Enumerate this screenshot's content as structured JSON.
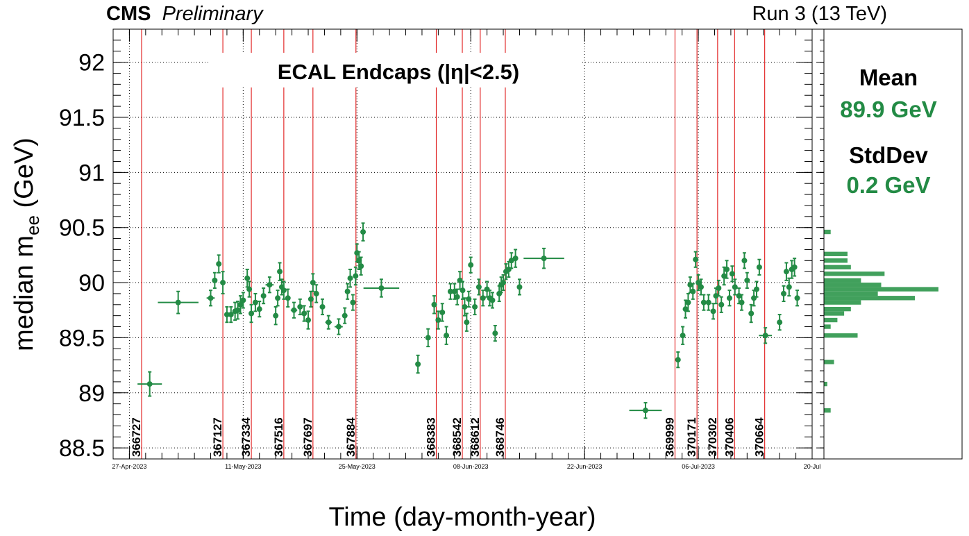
{
  "header": {
    "experiment": "CMS",
    "status": "Preliminary",
    "run_info": "Run 3 (13 TeV)"
  },
  "stats": {
    "mean_label": "Mean",
    "mean_value": "89.9 GeV",
    "stddev_label": "StdDev",
    "stddev_value": "0.2 GeV"
  },
  "colors": {
    "points": "#238b45",
    "run_lines": "#dd0000",
    "histogram": "#41a05c"
  },
  "chart_data": {
    "type": "scatter",
    "title": "ECAL Endcaps (|η|<2.5)",
    "xlabel": "Time (day-month-year)",
    "ylabel": "median m",
    "ylabel_sub": "ee",
    "ylabel_unit": " (GeV)",
    "ylim": [
      88.4,
      92.3
    ],
    "xlim": [
      "2023-04-25",
      "2023-07-20"
    ],
    "grid": true,
    "y_ticks": [
      {
        "value": 88.5,
        "label": "88.5"
      },
      {
        "value": 89,
        "label": "89"
      },
      {
        "value": 89.5,
        "label": "89.5"
      },
      {
        "value": 90,
        "label": "90"
      },
      {
        "value": 90.5,
        "label": "90.5"
      },
      {
        "value": 91,
        "label": "91"
      },
      {
        "value": 91.5,
        "label": "91.5"
      },
      {
        "value": 92,
        "label": "92"
      }
    ],
    "x_ticks": [
      {
        "date": "2023-04-27",
        "label": "27-Apr-2023"
      },
      {
        "date": "2023-05-11",
        "label": "11-May-2023"
      },
      {
        "date": "2023-05-25",
        "label": "25-May-2023"
      },
      {
        "date": "2023-06-08",
        "label": "08-Jun-2023"
      },
      {
        "date": "2023-06-22",
        "label": "22-Jun-2023"
      },
      {
        "date": "2023-07-06",
        "label": "06-Jul-2023"
      },
      {
        "date": "2023-07-20",
        "label": "20-Jul"
      }
    ],
    "runs": [
      {
        "run": "366727",
        "date": "2023-04-28 12:00"
      },
      {
        "run": "367127",
        "date": "2023-05-08 12:00"
      },
      {
        "run": "367334",
        "date": "2023-05-12 00:00"
      },
      {
        "run": "367516",
        "date": "2023-05-16 00:00"
      },
      {
        "run": "367697",
        "date": "2023-05-19 14:00"
      },
      {
        "run": "367884",
        "date": "2023-05-24 21:00"
      },
      {
        "run": "368383",
        "date": "2023-06-03 18:00"
      },
      {
        "run": "368542",
        "date": "2023-06-06 23:00"
      },
      {
        "run": "368612",
        "date": "2023-06-09 04:00"
      },
      {
        "run": "368746",
        "date": "2023-06-12 06:00"
      },
      {
        "run": "369999",
        "date": "2023-07-03 03:00"
      },
      {
        "run": "370171",
        "date": "2023-07-05 20:00"
      },
      {
        "run": "370302",
        "date": "2023-07-08 09:00"
      },
      {
        "run": "370406",
        "date": "2023-07-10 11:00"
      },
      {
        "run": "370664",
        "date": "2023-07-14 04:00"
      }
    ],
    "points": [
      {
        "x": "2023-04-29 12:00",
        "y": 89.08,
        "xerr": 1.5,
        "yerr": 0.11
      },
      {
        "x": "2023-05-03 00:00",
        "y": 89.82,
        "xerr": 2.5,
        "yerr": 0.1
      },
      {
        "x": "2023-05-07 00:00",
        "y": 89.86,
        "xerr": 0.5,
        "yerr": 0.07
      },
      {
        "x": "2023-05-07 12:00",
        "y": 90.02,
        "xerr": 0,
        "yerr": 0.07
      },
      {
        "x": "2023-05-08 00:00",
        "y": 90.17,
        "xerr": 0,
        "yerr": 0.08
      },
      {
        "x": "2023-05-08 12:00",
        "y": 90.0,
        "xerr": 0,
        "yerr": 0.1
      },
      {
        "x": "2023-05-09 00:00",
        "y": 89.71,
        "xerr": 0.3,
        "yerr": 0.07
      },
      {
        "x": "2023-05-09 12:00",
        "y": 89.71,
        "xerr": 0,
        "yerr": 0.07
      },
      {
        "x": "2023-05-10 00:00",
        "y": 89.74,
        "xerr": 0,
        "yerr": 0.08
      },
      {
        "x": "2023-05-10 08:00",
        "y": 89.75,
        "xerr": 0,
        "yerr": 0.08
      },
      {
        "x": "2023-05-10 16:00",
        "y": 89.8,
        "xerr": 0,
        "yerr": 0.08
      },
      {
        "x": "2023-05-11 00:00",
        "y": 89.84,
        "xerr": 0,
        "yerr": 0.07
      },
      {
        "x": "2023-05-11 12:00",
        "y": 90.04,
        "xerr": 0,
        "yerr": 0.08
      },
      {
        "x": "2023-05-11 18:00",
        "y": 89.94,
        "xerr": 0,
        "yerr": 0.07
      },
      {
        "x": "2023-05-12 00:00",
        "y": 89.72,
        "xerr": 0,
        "yerr": 0.08
      },
      {
        "x": "2023-05-12 12:00",
        "y": 89.82,
        "xerr": 0,
        "yerr": 0.08
      },
      {
        "x": "2023-05-13 00:00",
        "y": 89.76,
        "xerr": 0,
        "yerr": 0.07
      },
      {
        "x": "2023-05-13 12:00",
        "y": 89.88,
        "xerr": 0,
        "yerr": 0.07
      },
      {
        "x": "2023-05-14 06:00",
        "y": 89.98,
        "xerr": 0.5,
        "yerr": 0.07
      },
      {
        "x": "2023-05-15 00:00",
        "y": 89.7,
        "xerr": 0,
        "yerr": 0.08
      },
      {
        "x": "2023-05-15 06:00",
        "y": 89.86,
        "xerr": 0,
        "yerr": 0.07
      },
      {
        "x": "2023-05-15 12:00",
        "y": 90.1,
        "xerr": 0,
        "yerr": 0.08
      },
      {
        "x": "2023-05-15 18:00",
        "y": 89.96,
        "xerr": 0,
        "yerr": 0.07
      },
      {
        "x": "2023-05-16 00:00",
        "y": 89.93,
        "xerr": 0,
        "yerr": 0.08
      },
      {
        "x": "2023-05-16 12:00",
        "y": 89.86,
        "xerr": 0,
        "yerr": 0.08
      },
      {
        "x": "2023-05-17 06:00",
        "y": 89.75,
        "xerr": 0.4,
        "yerr": 0.07
      },
      {
        "x": "2023-05-18 00:00",
        "y": 89.78,
        "xerr": 0,
        "yerr": 0.07
      },
      {
        "x": "2023-05-18 12:00",
        "y": 89.72,
        "xerr": 0,
        "yerr": 0.07
      },
      {
        "x": "2023-05-19 00:00",
        "y": 89.66,
        "xerr": 0,
        "yerr": 0.08
      },
      {
        "x": "2023-05-19 08:00",
        "y": 89.85,
        "xerr": 0,
        "yerr": 0.07
      },
      {
        "x": "2023-05-19 14:00",
        "y": 90.0,
        "xerr": 0,
        "yerr": 0.08
      },
      {
        "x": "2023-05-20 00:00",
        "y": 89.9,
        "xerr": 0,
        "yerr": 0.08
      },
      {
        "x": "2023-05-20 18:00",
        "y": 89.78,
        "xerr": 0,
        "yerr": 0.07
      },
      {
        "x": "2023-05-21 12:00",
        "y": 89.64,
        "xerr": 0.4,
        "yerr": 0.06
      },
      {
        "x": "2023-05-22 18:00",
        "y": 89.6,
        "xerr": 0.5,
        "yerr": 0.07
      },
      {
        "x": "2023-05-23 12:00",
        "y": 89.7,
        "xerr": 0,
        "yerr": 0.07
      },
      {
        "x": "2023-05-23 20:00",
        "y": 89.92,
        "xerr": 0,
        "yerr": 0.07
      },
      {
        "x": "2023-05-24 04:00",
        "y": 90.04,
        "xerr": 0,
        "yerr": 0.08
      },
      {
        "x": "2023-05-24 12:00",
        "y": 89.82,
        "xerr": 0,
        "yerr": 0.07
      },
      {
        "x": "2023-05-24 20:00",
        "y": 90.06,
        "xerr": 0,
        "yerr": 0.08
      },
      {
        "x": "2023-05-25 00:00",
        "y": 90.27,
        "xerr": 0,
        "yerr": 0.08
      },
      {
        "x": "2023-05-25 06:00",
        "y": 90.2,
        "xerr": 0,
        "yerr": 0.08
      },
      {
        "x": "2023-05-25 12:00",
        "y": 90.15,
        "xerr": 0,
        "yerr": 0.08
      },
      {
        "x": "2023-05-25 18:00",
        "y": 90.46,
        "xerr": 0,
        "yerr": 0.08
      },
      {
        "x": "2023-05-28 00:00",
        "y": 89.95,
        "xerr": 2.2,
        "yerr": 0.08
      },
      {
        "x": "2023-06-01 12:00",
        "y": 89.26,
        "xerr": 0.3,
        "yerr": 0.08
      },
      {
        "x": "2023-06-02 18:00",
        "y": 89.5,
        "xerr": 0,
        "yerr": 0.08
      },
      {
        "x": "2023-06-03 12:00",
        "y": 89.8,
        "xerr": 0,
        "yerr": 0.08
      },
      {
        "x": "2023-06-04 00:00",
        "y": 89.66,
        "xerr": 0,
        "yerr": 0.08
      },
      {
        "x": "2023-06-04 12:00",
        "y": 89.73,
        "xerr": 0,
        "yerr": 0.08
      },
      {
        "x": "2023-06-05 00:00",
        "y": 89.52,
        "xerr": 0,
        "yerr": 0.08
      },
      {
        "x": "2023-06-05 12:00",
        "y": 89.92,
        "xerr": 0,
        "yerr": 0.07
      },
      {
        "x": "2023-06-06 00:00",
        "y": 89.92,
        "xerr": 0,
        "yerr": 0.07
      },
      {
        "x": "2023-06-06 08:00",
        "y": 89.87,
        "xerr": 0,
        "yerr": 0.07
      },
      {
        "x": "2023-06-06 16:00",
        "y": 90.02,
        "xerr": 0,
        "yerr": 0.08
      },
      {
        "x": "2023-06-07 00:00",
        "y": 89.93,
        "xerr": 0,
        "yerr": 0.08
      },
      {
        "x": "2023-06-07 06:00",
        "y": 89.78,
        "xerr": 0,
        "yerr": 0.08
      },
      {
        "x": "2023-06-07 12:00",
        "y": 89.64,
        "xerr": 0,
        "yerr": 0.08
      },
      {
        "x": "2023-06-07 18:00",
        "y": 89.85,
        "xerr": 0,
        "yerr": 0.07
      },
      {
        "x": "2023-06-08 00:00",
        "y": 90.16,
        "xerr": 0,
        "yerr": 0.07
      },
      {
        "x": "2023-06-08 12:00",
        "y": 89.78,
        "xerr": 0,
        "yerr": 0.07
      },
      {
        "x": "2023-06-09 00:00",
        "y": 89.96,
        "xerr": 0,
        "yerr": 0.07
      },
      {
        "x": "2023-06-09 12:00",
        "y": 89.86,
        "xerr": 0,
        "yerr": 0.07
      },
      {
        "x": "2023-06-10 00:00",
        "y": 89.94,
        "xerr": 0,
        "yerr": 0.07
      },
      {
        "x": "2023-06-10 08:00",
        "y": 89.86,
        "xerr": 0,
        "yerr": 0.07
      },
      {
        "x": "2023-06-10 16:00",
        "y": 89.84,
        "xerr": 0,
        "yerr": 0.07
      },
      {
        "x": "2023-06-11 00:00",
        "y": 89.54,
        "xerr": 0,
        "yerr": 0.07
      },
      {
        "x": "2023-06-11 12:00",
        "y": 89.9,
        "xerr": 0,
        "yerr": 0.07
      },
      {
        "x": "2023-06-11 18:00",
        "y": 89.98,
        "xerr": 0,
        "yerr": 0.07
      },
      {
        "x": "2023-06-12 00:00",
        "y": 90.0,
        "xerr": 0,
        "yerr": 0.07
      },
      {
        "x": "2023-06-12 08:00",
        "y": 90.1,
        "xerr": 0,
        "yerr": 0.07
      },
      {
        "x": "2023-06-12 16:00",
        "y": 90.12,
        "xerr": 0,
        "yerr": 0.07
      },
      {
        "x": "2023-06-13 00:00",
        "y": 90.2,
        "xerr": 0,
        "yerr": 0.07
      },
      {
        "x": "2023-06-13 12:00",
        "y": 90.22,
        "xerr": 0,
        "yerr": 0.08
      },
      {
        "x": "2023-06-14 00:00",
        "y": 89.96,
        "xerr": 0,
        "yerr": 0.07
      },
      {
        "x": "2023-06-17 00:00",
        "y": 90.22,
        "xerr": 2.5,
        "yerr": 0.09
      },
      {
        "x": "2023-06-29 12:00",
        "y": 88.84,
        "xerr": 2.0,
        "yerr": 0.07
      },
      {
        "x": "2023-07-03 12:00",
        "y": 89.3,
        "xerr": 0,
        "yerr": 0.07
      },
      {
        "x": "2023-07-04 02:00",
        "y": 89.52,
        "xerr": 0,
        "yerr": 0.08
      },
      {
        "x": "2023-07-04 10:00",
        "y": 89.76,
        "xerr": 0,
        "yerr": 0.08
      },
      {
        "x": "2023-07-04 18:00",
        "y": 89.82,
        "xerr": 0,
        "yerr": 0.08
      },
      {
        "x": "2023-07-05 00:00",
        "y": 89.98,
        "xerr": 0,
        "yerr": 0.07
      },
      {
        "x": "2023-07-05 08:00",
        "y": 89.92,
        "xerr": 0,
        "yerr": 0.07
      },
      {
        "x": "2023-07-05 16:00",
        "y": 90.21,
        "xerr": 0,
        "yerr": 0.07
      },
      {
        "x": "2023-07-06 00:00",
        "y": 90.0,
        "xerr": 0,
        "yerr": 0.07
      },
      {
        "x": "2023-07-06 08:00",
        "y": 89.96,
        "xerr": 0,
        "yerr": 0.07
      },
      {
        "x": "2023-07-06 16:00",
        "y": 89.82,
        "xerr": 0,
        "yerr": 0.07
      },
      {
        "x": "2023-07-07 06:00",
        "y": 89.82,
        "xerr": 0,
        "yerr": 0.07
      },
      {
        "x": "2023-07-07 20:00",
        "y": 89.74,
        "xerr": 0,
        "yerr": 0.07
      },
      {
        "x": "2023-07-08 04:00",
        "y": 89.88,
        "xerr": 0,
        "yerr": 0.07
      },
      {
        "x": "2023-07-08 12:00",
        "y": 89.95,
        "xerr": 0,
        "yerr": 0.07
      },
      {
        "x": "2023-07-08 20:00",
        "y": 89.8,
        "xerr": 0,
        "yerr": 0.07
      },
      {
        "x": "2023-07-09 04:00",
        "y": 90.06,
        "xerr": 0,
        "yerr": 0.08
      },
      {
        "x": "2023-07-09 12:00",
        "y": 90.12,
        "xerr": 0,
        "yerr": 0.08
      },
      {
        "x": "2023-07-09 20:00",
        "y": 89.86,
        "xerr": 0,
        "yerr": 0.07
      },
      {
        "x": "2023-07-10 04:00",
        "y": 90.08,
        "xerr": 0,
        "yerr": 0.07
      },
      {
        "x": "2023-07-10 12:00",
        "y": 89.96,
        "xerr": 0,
        "yerr": 0.07
      },
      {
        "x": "2023-07-11 00:00",
        "y": 89.88,
        "xerr": 0,
        "yerr": 0.07
      },
      {
        "x": "2023-07-11 08:00",
        "y": 89.82,
        "xerr": 0,
        "yerr": 0.07
      },
      {
        "x": "2023-07-11 16:00",
        "y": 90.2,
        "xerr": 0,
        "yerr": 0.07
      },
      {
        "x": "2023-07-12 00:00",
        "y": 90.02,
        "xerr": 0,
        "yerr": 0.07
      },
      {
        "x": "2023-07-12 12:00",
        "y": 89.72,
        "xerr": 0,
        "yerr": 0.08
      },
      {
        "x": "2023-07-12 20:00",
        "y": 89.86,
        "xerr": 0,
        "yerr": 0.07
      },
      {
        "x": "2023-07-13 04:00",
        "y": 89.94,
        "xerr": 0,
        "yerr": 0.07
      },
      {
        "x": "2023-07-13 12:00",
        "y": 90.14,
        "xerr": 0,
        "yerr": 0.07
      },
      {
        "x": "2023-07-14 06:00",
        "y": 89.52,
        "xerr": 0.8,
        "yerr": 0.07
      },
      {
        "x": "2023-07-16 00:00",
        "y": 89.64,
        "xerr": 0,
        "yerr": 0.07
      },
      {
        "x": "2023-07-16 12:00",
        "y": 89.9,
        "xerr": 0,
        "yerr": 0.07
      },
      {
        "x": "2023-07-16 20:00",
        "y": 90.1,
        "xerr": 0,
        "yerr": 0.08
      },
      {
        "x": "2023-07-17 04:00",
        "y": 89.96,
        "xerr": 0,
        "yerr": 0.08
      },
      {
        "x": "2023-07-17 12:00",
        "y": 90.12,
        "xerr": 0,
        "yerr": 0.08
      },
      {
        "x": "2023-07-17 20:00",
        "y": 90.14,
        "xerr": 0,
        "yerr": 0.08
      },
      {
        "x": "2023-07-18 04:00",
        "y": 89.86,
        "xerr": 0,
        "yerr": 0.07
      }
    ],
    "histogram": {
      "bins": [
        {
          "y": 90.46,
          "count": 2
        },
        {
          "y": 90.26,
          "count": 7
        },
        {
          "y": 90.2,
          "count": 7
        },
        {
          "y": 90.14,
          "count": 8
        },
        {
          "y": 90.08,
          "count": 18
        },
        {
          "y": 90.02,
          "count": 11
        },
        {
          "y": 89.98,
          "count": 17
        },
        {
          "y": 89.94,
          "count": 34
        },
        {
          "y": 89.9,
          "count": 16
        },
        {
          "y": 89.86,
          "count": 27
        },
        {
          "y": 89.82,
          "count": 11
        },
        {
          "y": 89.76,
          "count": 8
        },
        {
          "y": 89.72,
          "count": 6
        },
        {
          "y": 89.66,
          "count": 4
        },
        {
          "y": 89.6,
          "count": 2
        },
        {
          "y": 89.52,
          "count": 10
        },
        {
          "y": 89.28,
          "count": 3
        },
        {
          "y": 89.08,
          "count": 1
        },
        {
          "y": 88.84,
          "count": 2
        }
      ]
    }
  }
}
